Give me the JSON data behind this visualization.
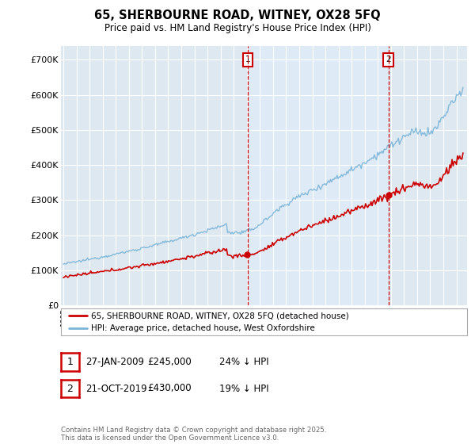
{
  "title": "65, SHERBOURNE ROAD, WITNEY, OX28 5FQ",
  "subtitle": "Price paid vs. HM Land Registry's House Price Index (HPI)",
  "legend_line1": "65, SHERBOURNE ROAD, WITNEY, OX28 5FQ (detached house)",
  "legend_line2": "HPI: Average price, detached house, West Oxfordshire",
  "sale1_date": "27-JAN-2009",
  "sale1_price": "£245,000",
  "sale1_hpi": "24% ↓ HPI",
  "sale2_date": "21-OCT-2019",
  "sale2_price": "£430,000",
  "sale2_hpi": "19% ↓ HPI",
  "footnote": "Contains HM Land Registry data © Crown copyright and database right 2025.\nThis data is licensed under the Open Government Licence v3.0.",
  "hpi_color": "#7ab4d8",
  "price_color": "#cc0000",
  "marker_color": "#cc0000",
  "sale1_x": 2009.07,
  "sale2_x": 2019.8,
  "ylim_min": 0,
  "ylim_max": 740000,
  "xlim_min": 1994.8,
  "xlim_max": 2025.8,
  "background_color": "#dde8f0",
  "plot_bg_color": "#dde8f0",
  "shade_color": "#deeaf5"
}
